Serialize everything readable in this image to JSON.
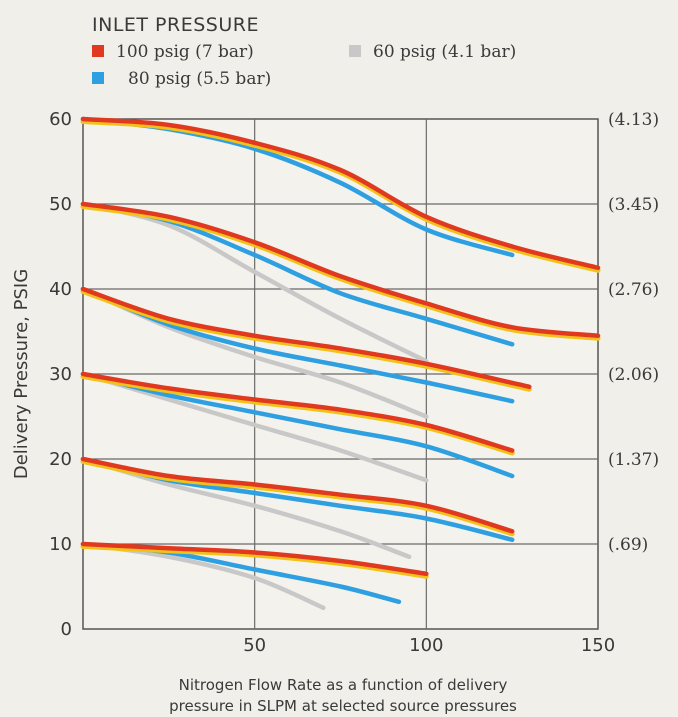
{
  "chart_data": {
    "type": "line",
    "title": "",
    "ylabel": "Delivery Pressure, PSIG",
    "xlabel": "",
    "caption": [
      "Nitrogen Flow Rate as a function of delivery",
      "pressure in SLPM at selected source pressures"
    ],
    "xlim": [
      0,
      150
    ],
    "ylim": [
      0,
      60
    ],
    "x_ticks": [
      50,
      100,
      150
    ],
    "y_ticks": [
      0,
      10,
      20,
      30,
      40,
      50,
      60
    ],
    "right_axis_labels": [
      {
        "y": 60,
        "label": "(4.13)"
      },
      {
        "y": 50,
        "label": "(3.45)"
      },
      {
        "y": 40,
        "label": "(2.76)"
      },
      {
        "y": 30,
        "label": "(2.06)"
      },
      {
        "y": 20,
        "label": "(1.37)"
      },
      {
        "y": 10,
        "label": "(.69)"
      }
    ],
    "grid": true,
    "legend": {
      "title": "INLET PRESSURE",
      "placement": "top-left",
      "entries": [
        {
          "name": "100 psig (7 bar)",
          "color": "#e0391f"
        },
        {
          "name": "80 psig (5.5 bar)",
          "color": "#2e9fe0"
        },
        {
          "name": "60 psig (4.1 bar)",
          "color": "#c8c8c8"
        }
      ]
    },
    "series": [
      {
        "name": "100 psig (7 bar)",
        "set_point": 60,
        "color": "#e0391f",
        "points": [
          [
            0,
            60
          ],
          [
            25,
            59.3
          ],
          [
            50,
            57.2
          ],
          [
            75,
            54
          ],
          [
            100,
            48.5
          ],
          [
            125,
            45
          ],
          [
            150,
            42.5
          ]
        ]
      },
      {
        "name": "80 psig (5.5 bar)",
        "set_point": 60,
        "color": "#2e9fe0",
        "points": [
          [
            0,
            60
          ],
          [
            25,
            58.8
          ],
          [
            50,
            56.5
          ],
          [
            75,
            52.5
          ],
          [
            100,
            47
          ],
          [
            125,
            44
          ]
        ]
      },
      {
        "name": "100 psig (7 bar)",
        "set_point": 50,
        "color": "#e0391f",
        "points": [
          [
            0,
            50
          ],
          [
            25,
            48.5
          ],
          [
            50,
            45.5
          ],
          [
            75,
            41.5
          ],
          [
            100,
            38.3
          ],
          [
            125,
            35.5
          ],
          [
            150,
            34.5
          ]
        ]
      },
      {
        "name": "80 psig (5.5 bar)",
        "set_point": 50,
        "color": "#2e9fe0",
        "points": [
          [
            0,
            50
          ],
          [
            25,
            48
          ],
          [
            50,
            44
          ],
          [
            75,
            39.5
          ],
          [
            100,
            36.5
          ],
          [
            125,
            33.5
          ]
        ]
      },
      {
        "name": "60 psig (4.1 bar)",
        "set_point": 50,
        "color": "#c8c8c8",
        "points": [
          [
            0,
            50
          ],
          [
            25,
            47.5
          ],
          [
            50,
            42
          ],
          [
            75,
            36.5
          ],
          [
            100,
            31.5
          ]
        ]
      },
      {
        "name": "100 psig (7 bar)",
        "set_point": 40,
        "color": "#e0391f",
        "points": [
          [
            0,
            40
          ],
          [
            25,
            36.5
          ],
          [
            50,
            34.5
          ],
          [
            75,
            33
          ],
          [
            100,
            31.2
          ],
          [
            130,
            28.5
          ]
        ]
      },
      {
        "name": "80 psig (5.5 bar)",
        "set_point": 40,
        "color": "#2e9fe0",
        "points": [
          [
            0,
            40
          ],
          [
            25,
            35.8
          ],
          [
            50,
            33
          ],
          [
            75,
            31
          ],
          [
            100,
            29
          ],
          [
            125,
            26.8
          ]
        ]
      },
      {
        "name": "60 psig (4.1 bar)",
        "set_point": 40,
        "color": "#c8c8c8",
        "points": [
          [
            0,
            40
          ],
          [
            25,
            35.5
          ],
          [
            50,
            32
          ],
          [
            75,
            29
          ],
          [
            100,
            25
          ]
        ]
      },
      {
        "name": "100 psig (7 bar)",
        "set_point": 30,
        "color": "#e0391f",
        "points": [
          [
            0,
            30
          ],
          [
            25,
            28.3
          ],
          [
            50,
            27
          ],
          [
            75,
            25.8
          ],
          [
            100,
            24
          ],
          [
            125,
            21
          ]
        ]
      },
      {
        "name": "80 psig (5.5 bar)",
        "set_point": 30,
        "color": "#2e9fe0",
        "points": [
          [
            0,
            30
          ],
          [
            25,
            27.5
          ],
          [
            50,
            25.5
          ],
          [
            75,
            23.5
          ],
          [
            100,
            21.5
          ],
          [
            125,
            18
          ]
        ]
      },
      {
        "name": "60 psig (4.1 bar)",
        "set_point": 30,
        "color": "#c8c8c8",
        "points": [
          [
            0,
            30
          ],
          [
            25,
            27
          ],
          [
            50,
            24
          ],
          [
            75,
            21
          ],
          [
            100,
            17.5
          ]
        ]
      },
      {
        "name": "100 psig (7 bar)",
        "set_point": 20,
        "color": "#e0391f",
        "points": [
          [
            0,
            20
          ],
          [
            25,
            18
          ],
          [
            50,
            17
          ],
          [
            75,
            15.8
          ],
          [
            100,
            14.5
          ],
          [
            125,
            11.5
          ]
        ]
      },
      {
        "name": "80 psig (5.5 bar)",
        "set_point": 20,
        "color": "#2e9fe0",
        "points": [
          [
            0,
            20
          ],
          [
            25,
            17.5
          ],
          [
            50,
            16
          ],
          [
            75,
            14.5
          ],
          [
            100,
            13
          ],
          [
            125,
            10.5
          ]
        ]
      },
      {
        "name": "60 psig (4.1 bar)",
        "set_point": 20,
        "color": "#c8c8c8",
        "points": [
          [
            0,
            20
          ],
          [
            25,
            17
          ],
          [
            50,
            14.5
          ],
          [
            75,
            11.5
          ],
          [
            95,
            8.5
          ]
        ]
      },
      {
        "name": "100 psig (7 bar)",
        "set_point": 10,
        "color": "#e0391f",
        "points": [
          [
            0,
            10
          ],
          [
            25,
            9.5
          ],
          [
            50,
            9
          ],
          [
            75,
            8
          ],
          [
            100,
            6.5
          ]
        ]
      },
      {
        "name": "80 psig (5.5 bar)",
        "set_point": 10,
        "color": "#2e9fe0",
        "points": [
          [
            0,
            10
          ],
          [
            25,
            9
          ],
          [
            50,
            7
          ],
          [
            75,
            5
          ],
          [
            92,
            3.2
          ]
        ]
      },
      {
        "name": "60 psig (4.1 bar)",
        "set_point": 10,
        "color": "#c8c8c8",
        "points": [
          [
            0,
            10
          ],
          [
            25,
            8.5
          ],
          [
            50,
            6
          ],
          [
            70,
            2.5
          ]
        ]
      }
    ]
  }
}
